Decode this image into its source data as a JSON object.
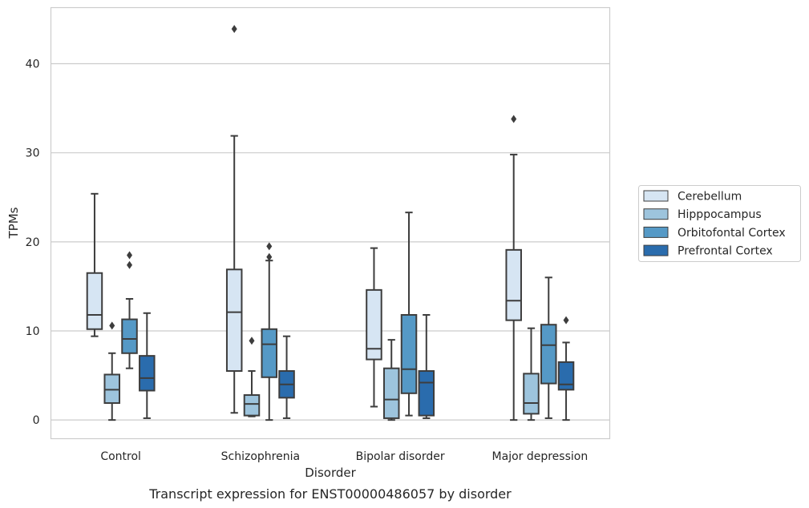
{
  "chart_data": {
    "type": "box",
    "title": "",
    "caption": "Transcript expression for ENST00000486057 by disorder",
    "xlabel": "Disorder",
    "ylabel": "TPMs",
    "ylim": [
      -2.1,
      46.3
    ],
    "yticks": [
      0,
      10,
      20,
      30,
      40
    ],
    "grid": "horizontal",
    "legend_position": "right",
    "categories": [
      "Control",
      "Schizophrenia",
      "Bipolar disorder",
      "Major depression"
    ],
    "series": [
      {
        "name": "Cerebellum",
        "color": "#d6e5f3",
        "boxes": [
          {
            "whislo": 9.4,
            "q1": 10.2,
            "med": 11.8,
            "q3": 16.5,
            "whishi": 25.4,
            "fliers": []
          },
          {
            "whislo": 0.8,
            "q1": 5.5,
            "med": 12.1,
            "q3": 16.9,
            "whishi": 31.9,
            "fliers": [
              43.9
            ]
          },
          {
            "whislo": 1.5,
            "q1": 6.8,
            "med": 8.0,
            "q3": 14.6,
            "whishi": 19.3,
            "fliers": []
          },
          {
            "whislo": 0.0,
            "q1": 11.2,
            "med": 13.4,
            "q3": 19.1,
            "whishi": 29.8,
            "fliers": [
              33.8
            ]
          }
        ]
      },
      {
        "name": "Hipppocampus",
        "color": "#9dc4dd",
        "boxes": [
          {
            "whislo": 0.0,
            "q1": 1.9,
            "med": 3.4,
            "q3": 5.1,
            "whishi": 7.5,
            "fliers": [
              10.6
            ]
          },
          {
            "whislo": 0.4,
            "q1": 0.5,
            "med": 1.8,
            "q3": 2.8,
            "whishi": 5.5,
            "fliers": [
              8.9
            ]
          },
          {
            "whislo": 0.0,
            "q1": 0.2,
            "med": 2.3,
            "q3": 5.8,
            "whishi": 9.0,
            "fliers": []
          },
          {
            "whislo": 0.0,
            "q1": 0.7,
            "med": 1.9,
            "q3": 5.2,
            "whishi": 10.3,
            "fliers": []
          }
        ]
      },
      {
        "name": "Orbitofontal Cortex",
        "color": "#5599c6",
        "boxes": [
          {
            "whislo": 5.8,
            "q1": 7.5,
            "med": 9.1,
            "q3": 11.3,
            "whishi": 13.6,
            "fliers": [
              17.4,
              18.5
            ]
          },
          {
            "whislo": 0.0,
            "q1": 4.8,
            "med": 8.5,
            "q3": 10.2,
            "whishi": 17.9,
            "fliers": [
              18.3,
              19.5
            ]
          },
          {
            "whislo": 0.5,
            "q1": 3.0,
            "med": 5.7,
            "q3": 11.8,
            "whishi": 23.3,
            "fliers": []
          },
          {
            "whislo": 0.2,
            "q1": 4.1,
            "med": 8.4,
            "q3": 10.7,
            "whishi": 16.0,
            "fliers": []
          }
        ]
      },
      {
        "name": "Prefrontal Cortex",
        "color": "#2a6cad",
        "boxes": [
          {
            "whislo": 0.2,
            "q1": 3.3,
            "med": 4.7,
            "q3": 7.2,
            "whishi": 12.0,
            "fliers": []
          },
          {
            "whislo": 0.2,
            "q1": 2.5,
            "med": 4.0,
            "q3": 5.5,
            "whishi": 9.4,
            "fliers": []
          },
          {
            "whislo": 0.2,
            "q1": 0.5,
            "med": 4.2,
            "q3": 5.5,
            "whishi": 11.8,
            "fliers": []
          },
          {
            "whislo": 0.0,
            "q1": 3.4,
            "med": 4.0,
            "q3": 6.5,
            "whishi": 8.7,
            "fliers": [
              11.2
            ]
          }
        ]
      }
    ]
  }
}
